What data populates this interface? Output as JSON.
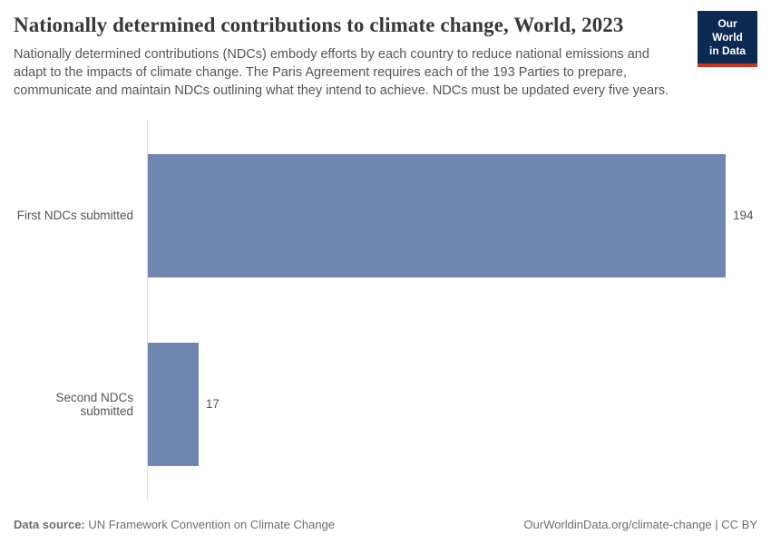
{
  "header": {
    "title": "Nationally determined contributions to climate change, World, 2023",
    "subtitle": "Nationally determined contributions (NDCs) embody efforts by each country to reduce national emissions and adapt to the impacts of climate change. The Paris Agreement requires each of the 193 Parties to prepare, communicate and maintain NDCs outlining what they intend to achieve. NDCs must be updated every five years."
  },
  "logo": {
    "line1": "Our World",
    "line2": "in Data",
    "bg_color": "#0d2a52",
    "accent_color": "#c9341f"
  },
  "chart_data": {
    "type": "bar",
    "orientation": "horizontal",
    "title": "Nationally determined contributions to climate change, World, 2023",
    "categories": [
      "First NDCs submitted",
      "Second NDCs submitted"
    ],
    "values": [
      194,
      17
    ],
    "value_labels": [
      "194",
      "17"
    ],
    "xlabel": "",
    "ylabel": "",
    "xlim": [
      0,
      194
    ],
    "grid": false,
    "legend": "none",
    "bar_color": "#6f87b0",
    "axis_line_color": "#d9d9d9"
  },
  "footer": {
    "source_label": "Data source:",
    "source_value": " UN Framework Convention on Climate Change",
    "attribution": "OurWorldinData.org/climate-change | CC BY"
  }
}
